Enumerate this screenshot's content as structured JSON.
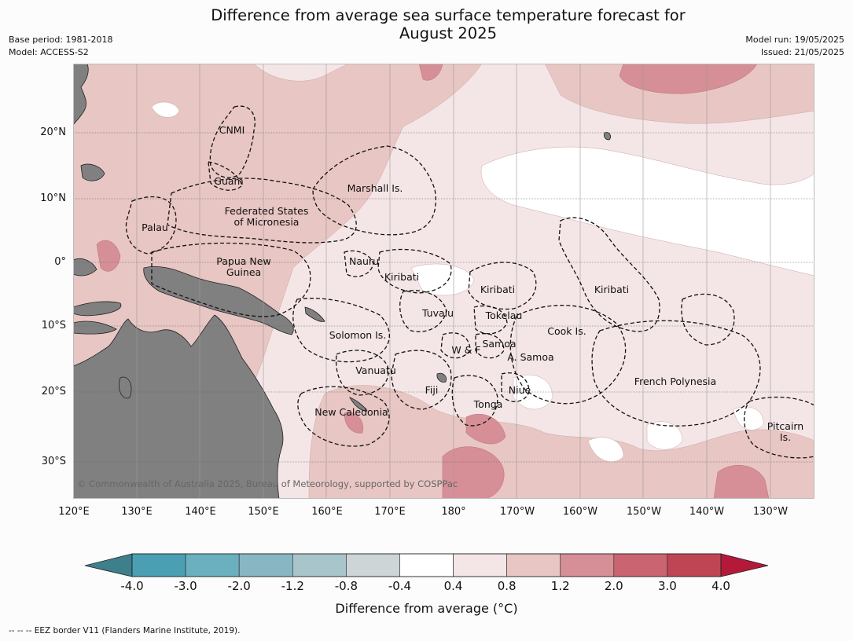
{
  "title_line1": "Difference from average sea surface temperature forecast for",
  "title_line2": "August 2025",
  "meta_left": {
    "base_period": "Base period: 1981-2018",
    "model": "Model: ACCESS-S2"
  },
  "meta_right": {
    "model_run": "Model run: 19/05/2025",
    "issued": "Issued: 21/05/2025"
  },
  "axes": {
    "lat_ticks": [
      "20°N",
      "10°N",
      "0°",
      "10°S",
      "20°S",
      "30°S"
    ],
    "lon_ticks": [
      "120°E",
      "130°E",
      "140°E",
      "150°E",
      "160°E",
      "170°E",
      "180°",
      "170°W",
      "160°W",
      "150°W",
      "140°W",
      "130°W"
    ]
  },
  "regions": {
    "cnmi": "CNMI",
    "guam": "Guam",
    "marshall": "Marshall Is.",
    "fsm1": "Federated States",
    "fsm2": "of Micronesia",
    "palau": "Palau",
    "png1": "Papua New",
    "png2": "Guinea",
    "nauru": "Nauru",
    "kiribati1": "Kiribati",
    "kiribati2": "Kiribati",
    "kiribati3": "Kiribati",
    "tuvalu": "Tuvalu",
    "tokelau": "Tokelau",
    "cook": "Cook Is.",
    "solomon": "Solomon Is.",
    "wf": "W & F",
    "samoa": "Samoa",
    "asamoa": "A. Samoa",
    "vanuatu": "Vanuatu",
    "fiji": "Fiji",
    "niue": "Niue",
    "tonga": "Tonga",
    "newcal": "New Caledonia",
    "frpoly": "French Polynesia",
    "pitcairn1": "Pitcairn",
    "pitcairn2": "Is."
  },
  "copyright": "© Commonwealth of Australia 2025, Bureau of Meteorology, supported by COSPPac",
  "colorbar": {
    "label": "Difference from average (°C)",
    "ticks": [
      "-4.0",
      "-3.0",
      "-2.0",
      "-1.2",
      "-0.8",
      "-0.4",
      "0.4",
      "0.8",
      "1.2",
      "2.0",
      "3.0",
      "4.0"
    ],
    "colors": [
      "#3e7f8c",
      "#4aa0b2",
      "#6bb0bf",
      "#88b6c2",
      "#a7c5ca",
      "#cdd5d7",
      "#ffffff",
      "#f4e6e6",
      "#e8c6c3",
      "#d68f96",
      "#c96470",
      "#bf4555",
      "#b5193a"
    ]
  },
  "footer": "--  --  -- EEZ border V11 (Flanders Marine Institute, 2019)."
}
